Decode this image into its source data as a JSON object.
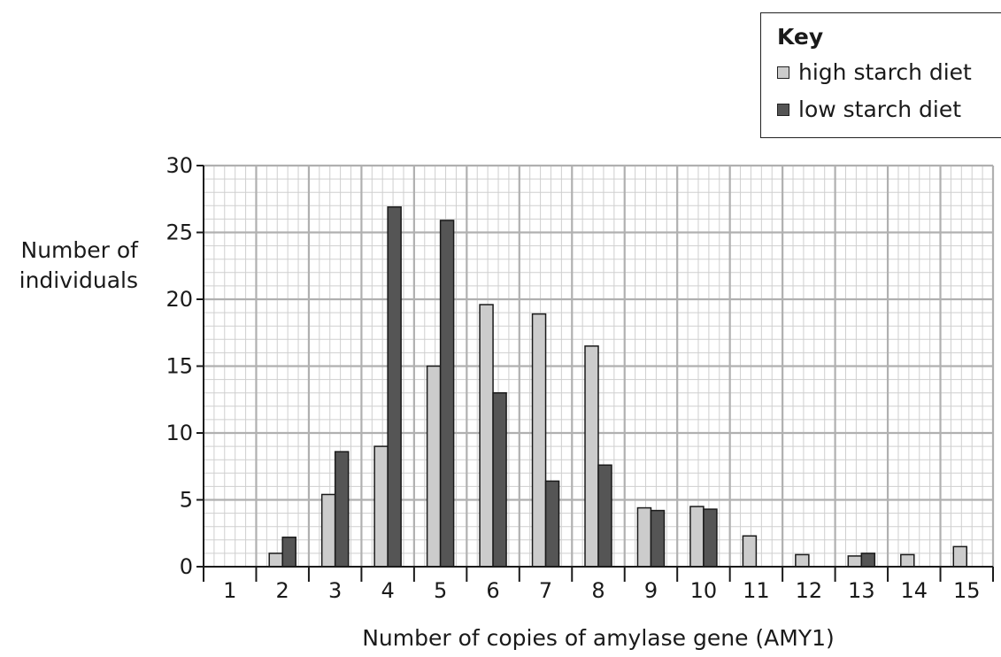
{
  "chart_data": {
    "type": "bar",
    "title": "",
    "xlabel": "Number of copies of amylase gene (AMY1)",
    "ylabel_lines": [
      "Number of",
      "individuals"
    ],
    "ylim": [
      0,
      30
    ],
    "yticks": [
      0,
      5,
      10,
      15,
      20,
      25,
      30
    ],
    "grid": true,
    "legend_position": "top-right",
    "legend_title": "Key",
    "categories": [
      "1",
      "2",
      "3",
      "4",
      "5",
      "6",
      "7",
      "8",
      "9",
      "10",
      "11",
      "12",
      "13",
      "14",
      "15"
    ],
    "series": [
      {
        "name": "high starch diet",
        "color": "#cccccc",
        "values": [
          0,
          1,
          5.4,
          9,
          15,
          19.6,
          18.9,
          16.5,
          4.4,
          4.5,
          2.3,
          0.9,
          0.8,
          0.9,
          1.5
        ]
      },
      {
        "name": "low starch diet",
        "color": "#555555",
        "values": [
          0,
          2.2,
          8.6,
          26.9,
          25.9,
          13,
          6.4,
          7.6,
          4.2,
          4.3,
          0,
          0,
          1,
          0,
          0
        ]
      }
    ]
  }
}
